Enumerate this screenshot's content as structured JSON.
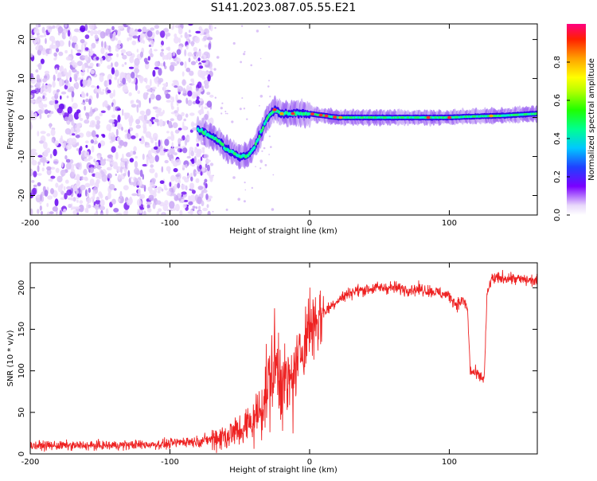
{
  "title": "S141.2023.087.05.55.E21",
  "colors": {
    "spectrogram_low": "#d9c2f7",
    "spectrogram_mid": "#6a00f4",
    "snr_line": "#ee2222"
  },
  "chart_data": [
    {
      "type": "heatmap",
      "title": "S141.2023.087.05.55.E21",
      "xlabel": "Height of straight line (km)",
      "ylabel": "Frequency (Hz)",
      "xlim": [
        -200,
        163
      ],
      "ylim": [
        -25,
        24
      ],
      "xticks": [
        -200,
        -100,
        0,
        100
      ],
      "yticks": [
        20,
        10,
        0,
        -10,
        -20
      ],
      "colorbar": {
        "label": "Normalized spectral amplitude",
        "range": [
          0,
          1
        ],
        "ticks": [
          "0.0",
          "0.2",
          "0.4",
          "0.6",
          "0.8"
        ],
        "colormap": "rainbow"
      },
      "ridge": {
        "x": [
          -80,
          -75,
          -70,
          -65,
          -60,
          -55,
          -50,
          -45,
          -40,
          -35,
          -30,
          -25,
          -20,
          -15,
          -10,
          -5,
          0,
          10,
          20,
          40,
          60,
          80,
          100,
          120,
          140,
          163
        ],
        "y": [
          -3,
          -4,
          -5,
          -6,
          -8,
          -9,
          -10,
          -10,
          -8,
          -4,
          0,
          2,
          1,
          1,
          1,
          1,
          1,
          0.5,
          0,
          0,
          0,
          0,
          0,
          0.3,
          0.5,
          1
        ]
      },
      "noise_region_x": [
        -200,
        -70
      ]
    },
    {
      "type": "line",
      "xlabel": "Height of straight line (km)",
      "ylabel": "SNR (10 * v/v)",
      "xlim": [
        -200,
        163
      ],
      "ylim": [
        0,
        230
      ],
      "xticks": [
        -200,
        -100,
        0,
        100
      ],
      "yticks": [
        0,
        50,
        100,
        150,
        200
      ],
      "series": [
        {
          "x": [
            -200,
            -150,
            -100,
            -90,
            -80,
            -70,
            -60,
            -50,
            -40,
            -35,
            -30,
            -25,
            -20,
            -15,
            -10,
            -5,
            0,
            10,
            20,
            30,
            40,
            50,
            60,
            70,
            80,
            90,
            100,
            105,
            110,
            113,
            115,
            120,
            125,
            127,
            130,
            140,
            150,
            163
          ],
          "y": [
            10,
            10,
            12,
            15,
            15,
            18,
            22,
            28,
            40,
            55,
            80,
            110,
            90,
            80,
            100,
            130,
            155,
            170,
            185,
            195,
            198,
            200,
            200,
            198,
            198,
            195,
            190,
            180,
            185,
            175,
            100,
            95,
            90,
            190,
            210,
            212,
            210,
            208
          ]
        }
      ]
    }
  ]
}
